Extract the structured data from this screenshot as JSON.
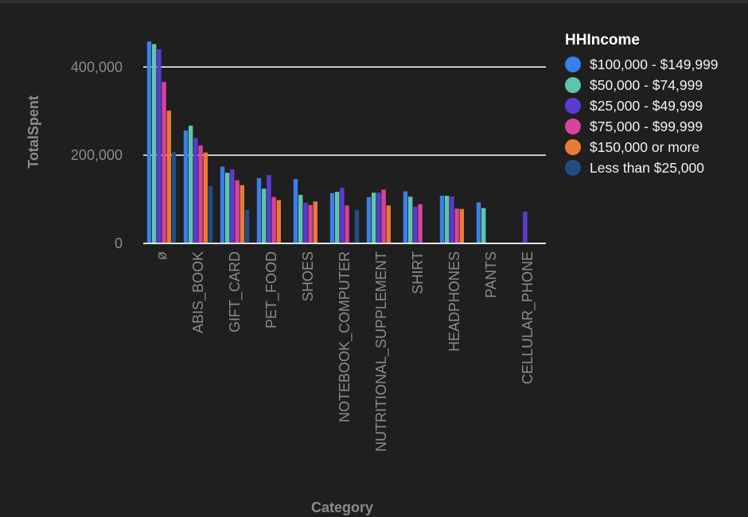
{
  "chart_data": {
    "type": "bar",
    "title": "",
    "xlabel": "Category",
    "ylabel": "TotalSpent",
    "ylim": [
      0,
      460000
    ],
    "yticks": [
      0,
      200000,
      400000
    ],
    "ytick_labels": [
      "0",
      "200,000",
      "400,000"
    ],
    "grid": true,
    "legend_position": "right",
    "legend_title": "HHIncome",
    "categories": [
      "ø",
      "ABIS_BOOK",
      "GIFT_CARD",
      "PET_FOOD",
      "SHOES",
      "NOTEBOOK_COMPUTER",
      "NUTRITIONAL_SUPPLEMENT",
      "SHIRT",
      "HEADPHONES",
      "PANTS",
      "CELLULAR_PHONE"
    ],
    "series": [
      {
        "name": "$100,000 - $149,999",
        "color": "#3b7fe8",
        "values": [
          458000,
          256000,
          174000,
          148000,
          146000,
          114000,
          105000,
          118000,
          108000,
          93000,
          null
        ]
      },
      {
        "name": "$50,000 - $74,999",
        "color": "#5ec4b0",
        "values": [
          452000,
          267000,
          160000,
          124000,
          110000,
          117000,
          115000,
          106000,
          108000,
          80000,
          null
        ]
      },
      {
        "name": "$25,000 - $49,999",
        "color": "#5c3bd1",
        "values": [
          440000,
          239000,
          168000,
          155000,
          92000,
          126000,
          115000,
          83000,
          106000,
          null,
          72000
        ]
      },
      {
        "name": "$75,000 - $99,999",
        "color": "#d9439a",
        "values": [
          366000,
          222000,
          143000,
          105000,
          87000,
          86000,
          122000,
          89000,
          79000,
          null,
          null
        ]
      },
      {
        "name": "$150,000 or more",
        "color": "#e97a36",
        "values": [
          301000,
          206000,
          132000,
          98000,
          95000,
          null,
          86000,
          null,
          78000,
          null,
          null
        ]
      },
      {
        "name": "Less than $25,000",
        "color": "#1f4e82",
        "values": [
          207000,
          130000,
          76000,
          null,
          null,
          76000,
          null,
          null,
          null,
          null,
          null
        ]
      }
    ]
  }
}
